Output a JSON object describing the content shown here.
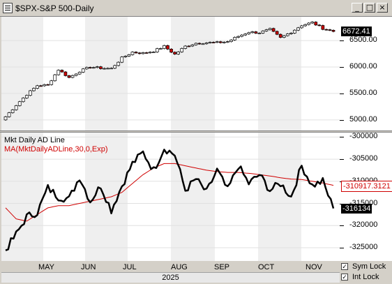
{
  "window": {
    "title": "$SPX-S&P 500-Daily",
    "buttons": {
      "minimize": "_",
      "maximize": "□",
      "close": "×"
    }
  },
  "chart_data": [
    {
      "type": "candlestick",
      "title": "$SPX-S&P 500-Daily",
      "ylim": [
        4800,
        6950
      ],
      "ticks": [
        "5000.00",
        "5500.00",
        "6000.00",
        "6500.00"
      ],
      "tick_values": [
        5000,
        5500,
        6000,
        6500
      ],
      "last_value": "6672.41",
      "x": [
        "2025-04-07",
        "2025-04-14",
        "2025-04-21",
        "2025-04-28",
        "2025-05-05",
        "2025-05-12",
        "2025-05-19",
        "2025-05-26",
        "2025-06-02",
        "2025-06-09",
        "2025-06-16",
        "2025-06-23",
        "2025-06-30",
        "2025-07-07",
        "2025-07-14",
        "2025-07-21",
        "2025-07-28",
        "2025-08-04",
        "2025-08-11",
        "2025-08-18",
        "2025-08-25",
        "2025-09-01",
        "2025-09-08",
        "2025-09-15",
        "2025-09-22",
        "2025-09-29",
        "2025-10-06",
        "2025-10-13",
        "2025-10-20",
        "2025-10-27",
        "2025-11-03",
        "2025-11-10"
      ],
      "close": [
        5060,
        5280,
        5480,
        5650,
        5660,
        5950,
        5800,
        5920,
        6000,
        5980,
        5970,
        6170,
        6280,
        6260,
        6300,
        6390,
        6240,
        6390,
        6450,
        6460,
        6460,
        6480,
        6580,
        6660,
        6650,
        6710,
        6550,
        6660,
        6790,
        6840,
        6730,
        6672
      ]
    },
    {
      "type": "line",
      "series": [
        {
          "name": "Mkt Daily AD Line",
          "values": [
            -325500,
            -322000,
            -318000,
            -317000,
            -311500,
            -313500,
            -314000,
            -309000,
            -314500,
            -311000,
            -316500,
            -311000,
            -306000,
            -303500,
            -307500,
            -302500,
            -304000,
            -312000,
            -309500,
            -312500,
            -307500,
            -312000,
            -306500,
            -310500,
            -308500,
            -312000,
            -310500,
            -313500,
            -306500,
            -311000,
            -310000,
            -316134
          ]
        },
        {
          "name": "MA(MktDailyADLine,30,0,Exp)",
          "values": [
            -316000,
            -318500,
            -319000,
            -317500,
            -316000,
            -315500,
            -315500,
            -315000,
            -314500,
            -314000,
            -313500,
            -312500,
            -310500,
            -308500,
            -307000,
            -306000,
            -306000,
            -306500,
            -307000,
            -307500,
            -307800,
            -308000,
            -308000,
            -308200,
            -308500,
            -308800,
            -309200,
            -309500,
            -309600,
            -310000,
            -310400,
            -310917
          ]
        }
      ],
      "ylim": [
        -328000,
        -299000
      ],
      "ticks": [
        "-300000",
        "-305000",
        "-310000",
        "-315000",
        "-320000",
        "-325000"
      ],
      "tick_values": [
        -300000,
        -305000,
        -310000,
        -315000,
        -320000,
        -325000
      ],
      "ma_last": "-310917.3121",
      "ad_last": "-316134"
    }
  ],
  "legend": {
    "ad_line": "Mkt Daily AD Line",
    "ma": "MA(MktDailyADLine,30,0,Exp)"
  },
  "xaxis": {
    "months": [
      "MAY",
      "JUN",
      "JUL",
      "AUG",
      "SEP",
      "OCT",
      "NOV"
    ],
    "year": "2025"
  },
  "controls": {
    "sym_lock": {
      "label": "Sym Lock",
      "checked": true
    },
    "int_lock": {
      "label": "Int Lock",
      "checked": true
    }
  },
  "colors": {
    "ma_line": "#d00000",
    "down_candle": "#cc0000",
    "up_candle": "#ffffff",
    "ad_line": "#000000"
  }
}
